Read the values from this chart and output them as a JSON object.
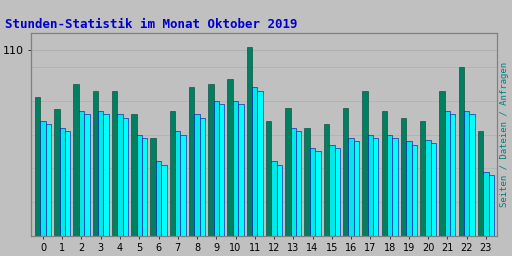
{
  "title": "Stunden-Statistik im Monat Oktober 2019",
  "title_color": "#0000cc",
  "ylabel_right": "Seiten / Dateien / Anfragen",
  "ylabel_right_color": "#008080",
  "xlabel_values": [
    0,
    1,
    2,
    3,
    4,
    5,
    6,
    7,
    8,
    9,
    10,
    11,
    12,
    13,
    14,
    15,
    16,
    17,
    18,
    19,
    20,
    21,
    22,
    23
  ],
  "background_color": "#c0c0c0",
  "plot_bg_color": "#c0c0c0",
  "bar_width": 0.28,
  "series": [
    {
      "name": "Anfragen",
      "color": "#008060",
      "edgecolor": "#004030",
      "values": [
        82,
        75,
        90,
        86,
        86,
        72,
        58,
        74,
        88,
        90,
        93,
        112,
        68,
        76,
        64,
        66,
        76,
        86,
        74,
        70,
        68,
        86,
        100,
        62
      ]
    },
    {
      "name": "Dateien",
      "color": "#00e8e8",
      "edgecolor": "#0000aa",
      "values": [
        68,
        64,
        74,
        74,
        72,
        60,
        44,
        62,
        72,
        80,
        80,
        88,
        44,
        64,
        52,
        54,
        58,
        60,
        60,
        56,
        57,
        74,
        74,
        38
      ]
    },
    {
      "name": "Seiten",
      "color": "#00ffff",
      "edgecolor": "#0000aa",
      "values": [
        66,
        62,
        72,
        72,
        70,
        58,
        42,
        60,
        70,
        78,
        78,
        86,
        42,
        62,
        50,
        52,
        56,
        58,
        58,
        54,
        55,
        72,
        72,
        36
      ]
    }
  ],
  "ylim": [
    0,
    120
  ],
  "ytick_shown": 110,
  "grid_lines": [
    110
  ],
  "grid_color": "#b0b0b0",
  "border_color": "#808080"
}
